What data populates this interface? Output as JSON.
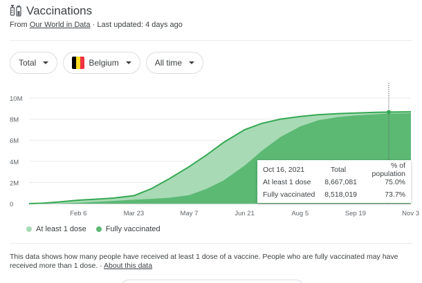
{
  "header": {
    "title": "Vaccinations",
    "source_prefix": "From ",
    "source_link": "Our World in Data",
    "separator": " · ",
    "updated": "Last updated: 4 days ago"
  },
  "filters": {
    "metric": "Total",
    "country": "Belgium",
    "range": "All time"
  },
  "colors": {
    "at_least_one": "#a8dab5",
    "fully": "#5bb974",
    "line": "#34a853",
    "flag": [
      "#000000",
      "#fdda24",
      "#ef3340"
    ]
  },
  "chart_data": {
    "type": "area",
    "ylim": [
      0,
      10000000
    ],
    "y_ticks": [
      {
        "value": 0,
        "label": "0"
      },
      {
        "value": 2000000,
        "label": "2M"
      },
      {
        "value": 4000000,
        "label": "4M"
      },
      {
        "value": 6000000,
        "label": "6M"
      },
      {
        "value": 8000000,
        "label": "8M"
      },
      {
        "value": 10000000,
        "label": "10M"
      }
    ],
    "x_ticks": [
      {
        "value": "2021-02-06",
        "label": "Feb 6"
      },
      {
        "value": "2021-03-23",
        "label": "Mar 23"
      },
      {
        "value": "2021-05-07",
        "label": "May 7"
      },
      {
        "value": "2021-06-21",
        "label": "Jun 21"
      },
      {
        "value": "2021-08-05",
        "label": "Aug 5"
      },
      {
        "value": "2021-09-19",
        "label": "Sep 19"
      },
      {
        "value": "2021-11-03",
        "label": "Nov 3"
      }
    ],
    "xlim": [
      "2020-12-28",
      "2021-11-03"
    ],
    "series": [
      {
        "name": "At least 1 dose",
        "points": [
          [
            "2020-12-28",
            0
          ],
          [
            "2021-01-08",
            40000
          ],
          [
            "2021-01-20",
            150000
          ],
          [
            "2021-02-06",
            330000
          ],
          [
            "2021-02-20",
            420000
          ],
          [
            "2021-03-06",
            520000
          ],
          [
            "2021-03-23",
            750000
          ],
          [
            "2021-04-06",
            1400000
          ],
          [
            "2021-04-20",
            2300000
          ],
          [
            "2021-05-07",
            3500000
          ],
          [
            "2021-05-21",
            4600000
          ],
          [
            "2021-06-04",
            5800000
          ],
          [
            "2021-06-21",
            7000000
          ],
          [
            "2021-07-05",
            7600000
          ],
          [
            "2021-07-20",
            8000000
          ],
          [
            "2021-08-05",
            8250000
          ],
          [
            "2021-08-20",
            8420000
          ],
          [
            "2021-09-05",
            8520000
          ],
          [
            "2021-09-19",
            8580000
          ],
          [
            "2021-10-05",
            8640000
          ],
          [
            "2021-10-16",
            8667081
          ],
          [
            "2021-11-03",
            8690000
          ]
        ]
      },
      {
        "name": "Fully vaccinated",
        "points": [
          [
            "2020-12-28",
            0
          ],
          [
            "2021-01-20",
            10000
          ],
          [
            "2021-02-06",
            80000
          ],
          [
            "2021-02-20",
            170000
          ],
          [
            "2021-03-06",
            250000
          ],
          [
            "2021-03-23",
            370000
          ],
          [
            "2021-04-06",
            450000
          ],
          [
            "2021-04-20",
            550000
          ],
          [
            "2021-05-07",
            800000
          ],
          [
            "2021-05-21",
            1400000
          ],
          [
            "2021-06-04",
            2200000
          ],
          [
            "2021-06-21",
            3600000
          ],
          [
            "2021-07-05",
            5000000
          ],
          [
            "2021-07-20",
            6300000
          ],
          [
            "2021-08-05",
            7300000
          ],
          [
            "2021-08-20",
            7900000
          ],
          [
            "2021-09-05",
            8200000
          ],
          [
            "2021-09-19",
            8350000
          ],
          [
            "2021-10-05",
            8460000
          ],
          [
            "2021-10-16",
            8518019
          ],
          [
            "2021-11-03",
            8560000
          ]
        ]
      }
    ],
    "highlight": "2021-10-16",
    "legend": [
      {
        "label": "At least 1 dose"
      },
      {
        "label": "Fully vaccinated"
      }
    ]
  },
  "tooltip": {
    "date": "Oct 16, 2021",
    "col_total": "Total",
    "col_pct": "% of population",
    "rows": [
      {
        "label": "At least 1 dose",
        "total": "8,667,081",
        "pct": "75.0%"
      },
      {
        "label": "Fully vaccinated",
        "total": "8,518,019",
        "pct": "73.7%"
      }
    ]
  },
  "note": {
    "text": "This data shows how many people have received at least 1 dose of a vaccine. People who are fully vaccinated may have received more than 1 dose.",
    "separator": " · ",
    "link": "About this data"
  }
}
